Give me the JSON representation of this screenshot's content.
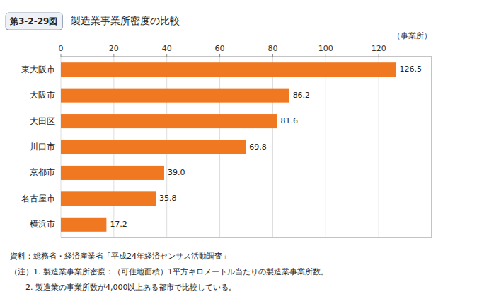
{
  "chart_data": {
    "type": "bar",
    "orientation": "horizontal",
    "title": "製造業事業所密度の比較",
    "figure_number": "第3-2-29図",
    "categories": [
      "東大阪市",
      "大阪市",
      "大田区",
      "川口市",
      "京都市",
      "名古屋市",
      "横浜市"
    ],
    "values": [
      126.5,
      86.2,
      81.6,
      69.8,
      39.0,
      35.8,
      17.2
    ],
    "value_labels": [
      "126.5",
      "86.2",
      "81.6",
      "69.8",
      "39.0",
      "35.8",
      "17.2"
    ],
    "data_labels": true,
    "color": "#F07820",
    "xlabel": "（事業所）",
    "xlim": [
      0,
      140
    ],
    "xticks": [
      0,
      20,
      40,
      60,
      80,
      100,
      120
    ],
    "grid": true,
    "footnotes": [
      "資料：総務省・経済産業省「平成24年経済センサス活動調査」",
      "（注）1. 製造業事業所密度：（可住地面積）1平方キロメートル当たりの製造業事業所数。",
      "　　2. 製造業の事業所数が4,000以上ある都市で比較している。"
    ]
  }
}
